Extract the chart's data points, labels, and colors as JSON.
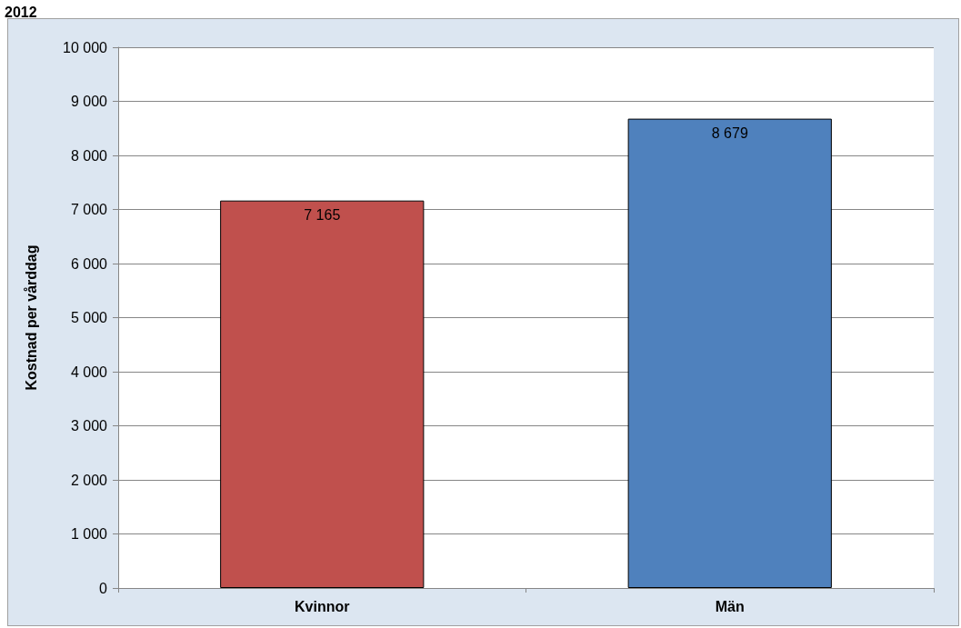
{
  "chart_data": {
    "type": "bar",
    "title": "2012",
    "ylabel": "Kostnad per vårddag",
    "categories": [
      "Kvinnor",
      "Män"
    ],
    "values": [
      7165,
      8679
    ],
    "colors": [
      "#c0504d",
      "#4f81bd"
    ],
    "value_labels": [
      "7 165",
      "8 679"
    ],
    "ylim": [
      0,
      10000
    ],
    "yticks": [
      0,
      {
        "value": 1000,
        "label": "1 000"
      },
      {
        "value": 2000,
        "label": "2 000"
      },
      {
        "value": 3000,
        "label": "3 000"
      },
      {
        "value": 4000,
        "label": "4 000"
      },
      {
        "value": 5000,
        "label": "5 000"
      },
      {
        "value": 6000,
        "label": "6 000"
      },
      {
        "value": 7000,
        "label": "7 000"
      },
      {
        "value": 8000,
        "label": "8 000"
      },
      {
        "value": 9000,
        "label": "9 000"
      },
      {
        "value": 10000,
        "label": "10 000"
      }
    ],
    "grid": true
  }
}
